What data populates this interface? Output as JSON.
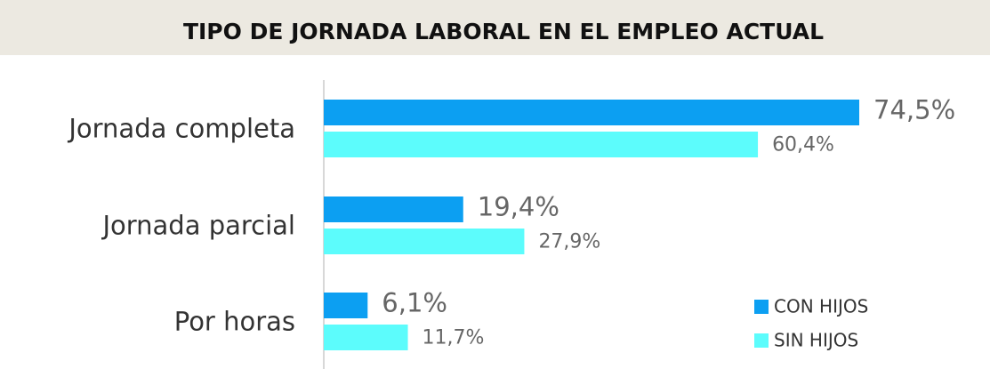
{
  "chart_data": {
    "type": "bar",
    "orientation": "horizontal",
    "title": "TIPO DE JORNADA LABORAL EN EL EMPLEO ACTUAL",
    "categories": [
      "Jornada completa",
      "Jornada parcial",
      "Por horas"
    ],
    "series": [
      {
        "name": "CON HIJOS",
        "color": "#0c9ff2",
        "values": [
          74.5,
          19.4,
          6.1
        ],
        "value_labels": [
          "74,5%",
          "19,4%",
          "6,1%"
        ]
      },
      {
        "name": "SIN HIJOS",
        "color": "#5cfcfc",
        "values": [
          60.4,
          27.9,
          11.7
        ],
        "value_labels": [
          "60,4%",
          "27,9%",
          "11,7%"
        ]
      }
    ],
    "legend": "bottom-right"
  }
}
